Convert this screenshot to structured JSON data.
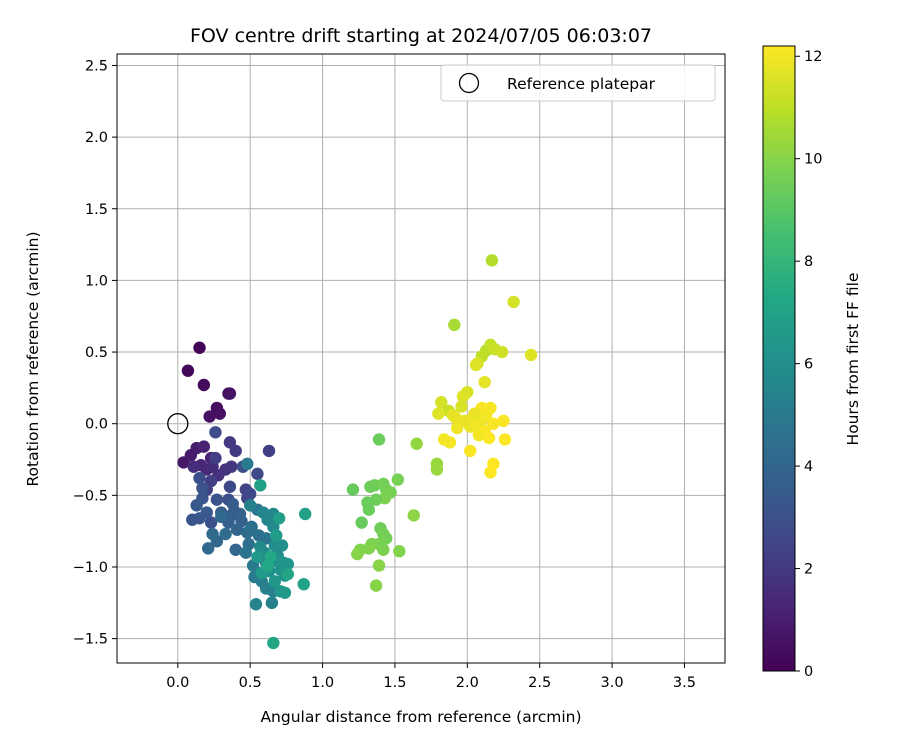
{
  "chart_data": {
    "type": "scatter",
    "title": "FOV centre drift starting at 2024/07/05 06:03:07",
    "xlabel": "Angular distance from reference (arcmin)",
    "ylabel": "Rotation from reference (arcmin)",
    "xlim": [
      -0.42,
      3.78
    ],
    "ylim": [
      -1.67,
      2.58
    ],
    "xticks": [
      0.0,
      0.5,
      1.0,
      1.5,
      2.0,
      2.5,
      3.0,
      3.5
    ],
    "yticks": [
      -1.5,
      -1.0,
      -0.5,
      0.0,
      0.5,
      1.0,
      1.5,
      2.0,
      2.5
    ],
    "xtick_labels": [
      "0.0",
      "0.5",
      "1.0",
      "1.5",
      "2.0",
      "2.5",
      "3.0",
      "3.5"
    ],
    "ytick_labels": [
      "−1.5",
      "−1.0",
      "−0.5",
      "0.0",
      "0.5",
      "1.0",
      "1.5",
      "2.0",
      "2.5"
    ],
    "grid": true,
    "legend": {
      "position": "top-right",
      "label": "Reference platepar"
    },
    "reference_point": {
      "x": 0.0,
      "y": 0.0
    },
    "colorbar": {
      "label": "Hours from first FF file",
      "colormap": "viridis",
      "range": [
        0,
        12.2
      ],
      "ticks": [
        0,
        2,
        4,
        6,
        8,
        10,
        12
      ],
      "tick_labels": [
        "0",
        "2",
        "4",
        "6",
        "8",
        "10",
        "12"
      ]
    },
    "points": [
      [
        0.15,
        0.53,
        0.1
      ],
      [
        0.07,
        0.37,
        0.2
      ],
      [
        0.18,
        0.27,
        0.3
      ],
      [
        0.27,
        0.11,
        0.4
      ],
      [
        0.29,
        0.07,
        0.5
      ],
      [
        0.22,
        0.05,
        0.5
      ],
      [
        0.36,
        0.21,
        0.6
      ],
      [
        0.35,
        0.21,
        0.6
      ],
      [
        0.04,
        -0.27,
        0.8
      ],
      [
        0.09,
        -0.22,
        0.9
      ],
      [
        0.13,
        -0.17,
        1.0
      ],
      [
        0.23,
        -0.24,
        1.1
      ],
      [
        0.16,
        -0.29,
        1.3
      ],
      [
        0.2,
        -0.32,
        1.4
      ],
      [
        0.11,
        -0.3,
        1.6
      ],
      [
        0.18,
        -0.16,
        1.2
      ],
      [
        0.24,
        -0.3,
        1.5
      ],
      [
        0.28,
        -0.36,
        1.7
      ],
      [
        0.33,
        -0.32,
        1.8
      ],
      [
        0.37,
        -0.3,
        1.9
      ],
      [
        0.36,
        -0.13,
        2.0
      ],
      [
        0.4,
        -0.19,
        2.1
      ],
      [
        0.26,
        -0.24,
        2.2
      ],
      [
        0.23,
        -0.4,
        2.3
      ],
      [
        0.2,
        -0.46,
        2.3
      ],
      [
        0.47,
        -0.46,
        2.4
      ],
      [
        0.48,
        -0.52,
        2.5
      ],
      [
        0.63,
        -0.19,
        2.2
      ],
      [
        0.55,
        -0.35,
        2.6
      ],
      [
        0.5,
        -0.49,
        2.6
      ],
      [
        0.36,
        -0.44,
        2.7
      ],
      [
        0.26,
        -0.06,
        2.8
      ],
      [
        0.45,
        -0.3,
        2.8
      ],
      [
        0.39,
        -0.61,
        2.9
      ],
      [
        0.15,
        -0.38,
        2.9
      ],
      [
        0.23,
        -0.69,
        3.0
      ],
      [
        0.35,
        -0.53,
        3.0
      ],
      [
        0.27,
        -0.53,
        3.1
      ],
      [
        0.17,
        -0.45,
        3.1
      ],
      [
        0.17,
        -0.52,
        3.2
      ],
      [
        0.1,
        -0.67,
        3.2
      ],
      [
        0.15,
        -0.66,
        3.3
      ],
      [
        0.2,
        -0.62,
        3.4
      ],
      [
        0.13,
        -0.57,
        3.4
      ],
      [
        0.38,
        -0.56,
        3.5
      ],
      [
        0.37,
        -0.64,
        3.6
      ],
      [
        0.3,
        -0.62,
        3.6
      ],
      [
        0.35,
        -0.69,
        3.7
      ],
      [
        0.43,
        -0.63,
        3.8
      ],
      [
        0.44,
        -0.68,
        3.8
      ],
      [
        0.41,
        -0.74,
        3.9
      ],
      [
        0.4,
        -0.88,
        4.0
      ],
      [
        0.27,
        -0.82,
        4.0
      ],
      [
        0.21,
        -0.87,
        4.1
      ],
      [
        0.3,
        -0.65,
        4.1
      ],
      [
        0.24,
        -0.77,
        4.2
      ],
      [
        0.33,
        -0.77,
        4.3
      ],
      [
        0.48,
        -0.76,
        4.3
      ],
      [
        0.49,
        -0.84,
        4.4
      ],
      [
        0.51,
        -0.72,
        4.5
      ],
      [
        0.56,
        -0.78,
        4.5
      ],
      [
        0.61,
        -0.8,
        4.6
      ],
      [
        0.55,
        -0.6,
        4.7
      ],
      [
        0.47,
        -0.9,
        4.7
      ],
      [
        0.56,
        -0.93,
        4.8
      ],
      [
        0.61,
        -0.97,
        4.9
      ],
      [
        0.52,
        -0.99,
        5.0
      ],
      [
        0.53,
        -1.07,
        5.0
      ],
      [
        0.58,
        -1.1,
        5.1
      ],
      [
        0.61,
        -1.15,
        5.2
      ],
      [
        0.66,
        -1.17,
        5.2
      ],
      [
        0.65,
        -1.25,
        5.3
      ],
      [
        0.54,
        -1.26,
        5.4
      ],
      [
        0.48,
        -0.28,
        5.0
      ],
      [
        0.5,
        -0.57,
        5.3
      ],
      [
        0.59,
        -0.62,
        5.5
      ],
      [
        0.62,
        -0.67,
        5.6
      ],
      [
        0.66,
        -0.63,
        5.6
      ],
      [
        0.66,
        -0.72,
        5.7
      ],
      [
        0.57,
        -0.86,
        5.8
      ],
      [
        0.6,
        -0.9,
        5.8
      ],
      [
        0.67,
        -0.85,
        5.9
      ],
      [
        0.72,
        -0.85,
        6.0
      ],
      [
        0.69,
        -0.92,
        6.0
      ],
      [
        0.65,
        -0.96,
        6.1
      ],
      [
        0.63,
        -1.03,
        6.1
      ],
      [
        0.71,
        -1.02,
        6.2
      ],
      [
        0.73,
        -0.97,
        6.2
      ],
      [
        0.76,
        -0.98,
        6.3
      ],
      [
        0.74,
        -1.06,
        6.3
      ],
      [
        0.67,
        -1.1,
        6.4
      ],
      [
        0.71,
        -1.17,
        6.4
      ],
      [
        0.74,
        -1.18,
        6.5
      ],
      [
        0.62,
        -1.0,
        6.5
      ],
      [
        0.58,
        -1.04,
        6.6
      ],
      [
        0.55,
        -0.93,
        6.6
      ],
      [
        0.68,
        -0.78,
        6.7
      ],
      [
        0.7,
        -0.66,
        6.8
      ],
      [
        0.57,
        -0.43,
        6.9
      ],
      [
        0.88,
        -0.63,
        6.9
      ],
      [
        0.87,
        -1.12,
        7.0
      ],
      [
        0.66,
        -1.53,
        7.1
      ],
      [
        0.76,
        -1.05,
        7.1
      ],
      [
        0.62,
        -0.99,
        7.2
      ],
      [
        0.64,
        -0.93,
        7.3
      ],
      [
        1.39,
        -0.11,
        9.4
      ],
      [
        1.21,
        -0.46,
        9.3
      ],
      [
        1.33,
        -0.44,
        9.5
      ],
      [
        1.36,
        -0.43,
        9.5
      ],
      [
        1.42,
        -0.42,
        9.6
      ],
      [
        1.44,
        -0.46,
        9.6
      ],
      [
        1.47,
        -0.48,
        9.7
      ],
      [
        1.52,
        -0.39,
        9.7
      ],
      [
        1.43,
        -0.52,
        9.8
      ],
      [
        1.37,
        -0.53,
        9.5
      ],
      [
        1.32,
        -0.6,
        9.4
      ],
      [
        1.31,
        -0.55,
        9.4
      ],
      [
        1.27,
        -0.69,
        9.3
      ],
      [
        1.4,
        -0.73,
        9.5
      ],
      [
        1.42,
        -0.77,
        9.6
      ],
      [
        1.44,
        -0.8,
        9.6
      ],
      [
        1.39,
        -0.84,
        9.7
      ],
      [
        1.34,
        -0.84,
        9.8
      ],
      [
        1.32,
        -0.87,
        9.9
      ],
      [
        1.26,
        -0.88,
        9.9
      ],
      [
        1.24,
        -0.91,
        10.0
      ],
      [
        1.42,
        -0.88,
        9.8
      ],
      [
        1.53,
        -0.89,
        9.9
      ],
      [
        1.39,
        -0.99,
        10.0
      ],
      [
        1.37,
        -1.13,
        10.0
      ],
      [
        1.63,
        -0.64,
        10.1
      ],
      [
        1.65,
        -0.14,
        10.2
      ],
      [
        1.79,
        -0.28,
        10.3
      ],
      [
        1.79,
        -0.32,
        10.3
      ],
      [
        1.91,
        0.69,
        10.6
      ],
      [
        2.17,
        1.14,
        10.8
      ],
      [
        2.13,
        0.51,
        10.9
      ],
      [
        2.1,
        0.47,
        11.0
      ],
      [
        2.16,
        0.55,
        11.1
      ],
      [
        2.19,
        0.52,
        11.2
      ],
      [
        2.24,
        0.5,
        11.3
      ],
      [
        2.32,
        0.85,
        11.4
      ],
      [
        2.44,
        0.48,
        11.6
      ],
      [
        2.07,
        0.42,
        11.5
      ],
      [
        2.06,
        0.41,
        11.6
      ],
      [
        2.12,
        0.29,
        11.7
      ],
      [
        2.0,
        0.22,
        11.5
      ],
      [
        1.97,
        0.19,
        11.6
      ],
      [
        1.82,
        0.15,
        11.4
      ],
      [
        1.96,
        0.12,
        11.5
      ],
      [
        1.87,
        0.09,
        11.2
      ],
      [
        1.9,
        0.06,
        11.7
      ],
      [
        1.92,
        0.04,
        11.8
      ],
      [
        1.8,
        0.07,
        11.6
      ],
      [
        1.93,
        -0.03,
        11.9
      ],
      [
        2.01,
        0.02,
        12.0
      ],
      [
        2.02,
        -0.02,
        11.9
      ],
      [
        2.07,
        0.0,
        12.0
      ],
      [
        2.1,
        0.03,
        11.9
      ],
      [
        2.13,
        0.06,
        12.0
      ],
      [
        2.1,
        0.11,
        12.1
      ],
      [
        2.16,
        0.11,
        12.1
      ],
      [
        2.18,
        0.0,
        12.1
      ],
      [
        2.25,
        0.02,
        12.1
      ],
      [
        2.12,
        -0.05,
        12.1
      ],
      [
        2.15,
        -0.1,
        12.2
      ],
      [
        2.26,
        -0.11,
        12.2
      ],
      [
        2.02,
        -0.19,
        12.1
      ],
      [
        1.84,
        -0.11,
        12.0
      ],
      [
        1.88,
        -0.13,
        12.0
      ],
      [
        2.18,
        -0.28,
        12.2
      ],
      [
        2.16,
        -0.34,
        12.2
      ],
      [
        1.98,
        0.02,
        11.8
      ],
      [
        2.05,
        0.07,
        11.8
      ],
      [
        2.08,
        -0.08,
        12.0
      ]
    ]
  }
}
